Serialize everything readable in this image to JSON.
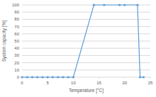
{
  "chart_data": {
    "type": "line",
    "x_label": "Temperature [°C]",
    "y_label": "System capacity [%]",
    "x": [
      0,
      1,
      2,
      3,
      4,
      5,
      6,
      7,
      8,
      9,
      10,
      14,
      16,
      19,
      20,
      22.5,
      23,
      23.7
    ],
    "values": [
      0,
      0,
      0,
      0,
      0,
      0,
      0,
      0,
      0,
      0,
      0,
      100,
      100,
      100,
      100,
      100,
      0,
      0
    ],
    "color": "#5b9bd5",
    "marker": "circle",
    "xlim": [
      0,
      25
    ],
    "xticks": [
      0,
      5,
      10,
      15,
      20,
      25
    ],
    "ylim": [
      0,
      100
    ],
    "yticks": [
      0,
      10,
      20,
      30,
      40,
      50,
      60,
      70,
      80,
      90,
      100
    ],
    "grid": true
  }
}
